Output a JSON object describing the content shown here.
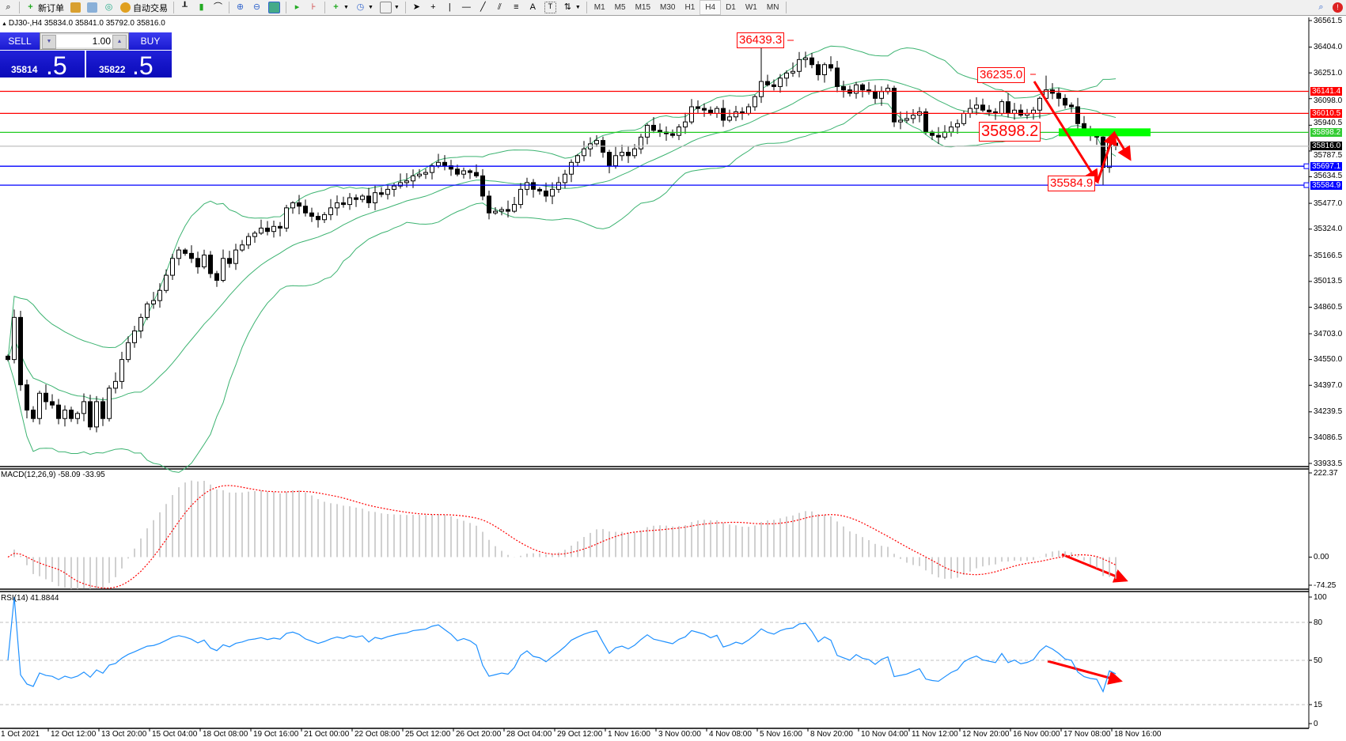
{
  "toolbar": {
    "new_order": "新订单",
    "auto_trading": "自动交易",
    "timeframes": [
      "M1",
      "M5",
      "M15",
      "M30",
      "H1",
      "H4",
      "D1",
      "W1",
      "MN"
    ],
    "active_timeframe": "H4"
  },
  "header": {
    "symbol_line": "DJ30-,H4  35834.0 35841.0 35792.0 35816.0"
  },
  "trade_panel": {
    "sell_label": "SELL",
    "buy_label": "BUY",
    "lot": "1.00",
    "sell_price_main": "35814",
    "sell_price_big": ".5",
    "buy_price_main": "35822",
    "buy_price_big": ".5"
  },
  "colors": {
    "bull_body": "#ffffff",
    "bear_body": "#000000",
    "bollinger": "#3cb371",
    "resistance": "#ff0000",
    "support": "#0000ff",
    "pivot": "#22cc22",
    "bid_line": "#c0c0c0",
    "macd_hist": "#c0c0c0",
    "macd_signal": "#ff0000",
    "rsi": "#1e90ff",
    "annotation": "#ff0000"
  },
  "chart_data": [
    {
      "type": "candlestick",
      "symbol": "DJ30-",
      "timeframe": "H4",
      "ylim": [
        33933.5,
        36561.5
      ],
      "y_ticks": [
        "36561.5",
        "36404.0",
        "36251.0",
        "36098.0",
        "35940.5",
        "35787.5",
        "35634.5",
        "35477.0",
        "35324.0",
        "35166.5",
        "35013.5",
        "34860.5",
        "34703.0",
        "34550.0",
        "34397.0",
        "34239.5",
        "34086.5",
        "33933.5"
      ],
      "x_ticks": [
        "1 Oct 2021",
        "12 Oct 12:00",
        "13 Oct 20:00",
        "15 Oct 04:00",
        "18 Oct 08:00",
        "19 Oct 16:00",
        "21 Oct 00:00",
        "22 Oct 08:00",
        "25 Oct 12:00",
        "26 Oct 20:00",
        "28 Oct 04:00",
        "29 Oct 12:00",
        "1 Nov 16:00",
        "3 Nov 00:00",
        "4 Nov 08:00",
        "5 Nov 16:00",
        "8 Nov 20:00",
        "10 Nov 04:00",
        "11 Nov 12:00",
        "12 Nov 20:00",
        "16 Nov 00:00",
        "17 Nov 08:00",
        "18 Nov 16:00"
      ],
      "closes": [
        34550,
        34800,
        34400,
        34250,
        34200,
        34350,
        34300,
        34280,
        34200,
        34250,
        34200,
        34230,
        34300,
        34150,
        34300,
        34200,
        34380,
        34420,
        34550,
        34650,
        34720,
        34800,
        34880,
        34900,
        34960,
        35050,
        35150,
        35200,
        35180,
        35150,
        35100,
        35170,
        35060,
        35020,
        35150,
        35120,
        35200,
        35230,
        35280,
        35300,
        35330,
        35310,
        35340,
        35330,
        35450,
        35480,
        35460,
        35420,
        35400,
        35380,
        35410,
        35450,
        35480,
        35470,
        35510,
        35500,
        35520,
        35480,
        35540,
        35530,
        35560,
        35580,
        35600,
        35610,
        35640,
        35650,
        35660,
        35700,
        35720,
        35700,
        35680,
        35650,
        35670,
        35660,
        35640,
        35520,
        35420,
        35430,
        35440,
        35430,
        35470,
        35560,
        35600,
        35560,
        35550,
        35520,
        35560,
        35600,
        35650,
        35720,
        35760,
        35800,
        35830,
        35850,
        35780,
        35700,
        35760,
        35780,
        35760,
        35800,
        35870,
        35940,
        35910,
        35900,
        35890,
        35880,
        35930,
        35960,
        36050,
        36040,
        36030,
        36010,
        36040,
        35970,
        35990,
        36020,
        36010,
        36050,
        36110,
        36200,
        36180,
        36170,
        36220,
        36250,
        36260,
        36330,
        36340,
        36300,
        36240,
        36300,
        36280,
        36170,
        36150,
        36130,
        36180,
        36150,
        36140,
        36100,
        36140,
        36160,
        35960,
        35970,
        35980,
        36000,
        36020,
        35900,
        35880,
        35870,
        35900,
        35930,
        35950,
        36010,
        36040,
        36060,
        36030,
        36020,
        36010,
        36080,
        36010,
        36030,
        36000,
        36010,
        36030,
        36100,
        36150,
        36130,
        36100,
        36060,
        36050,
        35950,
        35900,
        35880,
        35870,
        35690,
        35860,
        35816
      ],
      "last_bar": {
        "open": 35834.0,
        "high": 35841.0,
        "low": 35792.0,
        "close": 35816.0
      },
      "overlay": "Bollinger Bands",
      "horizontal_lines": [
        {
          "price": "36141.4",
          "kind": "resistance"
        },
        {
          "price": "36010.5",
          "kind": "resistance"
        },
        {
          "price": "35898.2",
          "kind": "pivot"
        },
        {
          "price": "35816.0",
          "kind": "bid"
        },
        {
          "price": "35697.1",
          "kind": "support"
        },
        {
          "price": "35584.9",
          "kind": "support"
        }
      ],
      "annotations": [
        "36439.3",
        "36235.0",
        "35898.2",
        "35584.9"
      ]
    },
    {
      "type": "histogram+line",
      "title": "MACD(12,26,9) -58.09 -33.95",
      "ylim": [
        -74.25,
        222.37
      ],
      "y_ticks": [
        "222.37",
        "0.00",
        "-74.25"
      ]
    },
    {
      "type": "line",
      "title": "RSI(14) 41.8844",
      "ylim": [
        0,
        100
      ],
      "y_ticks": [
        "100",
        "80",
        "50",
        "15",
        "0"
      ],
      "levels": [
        80,
        50,
        15
      ]
    }
  ]
}
